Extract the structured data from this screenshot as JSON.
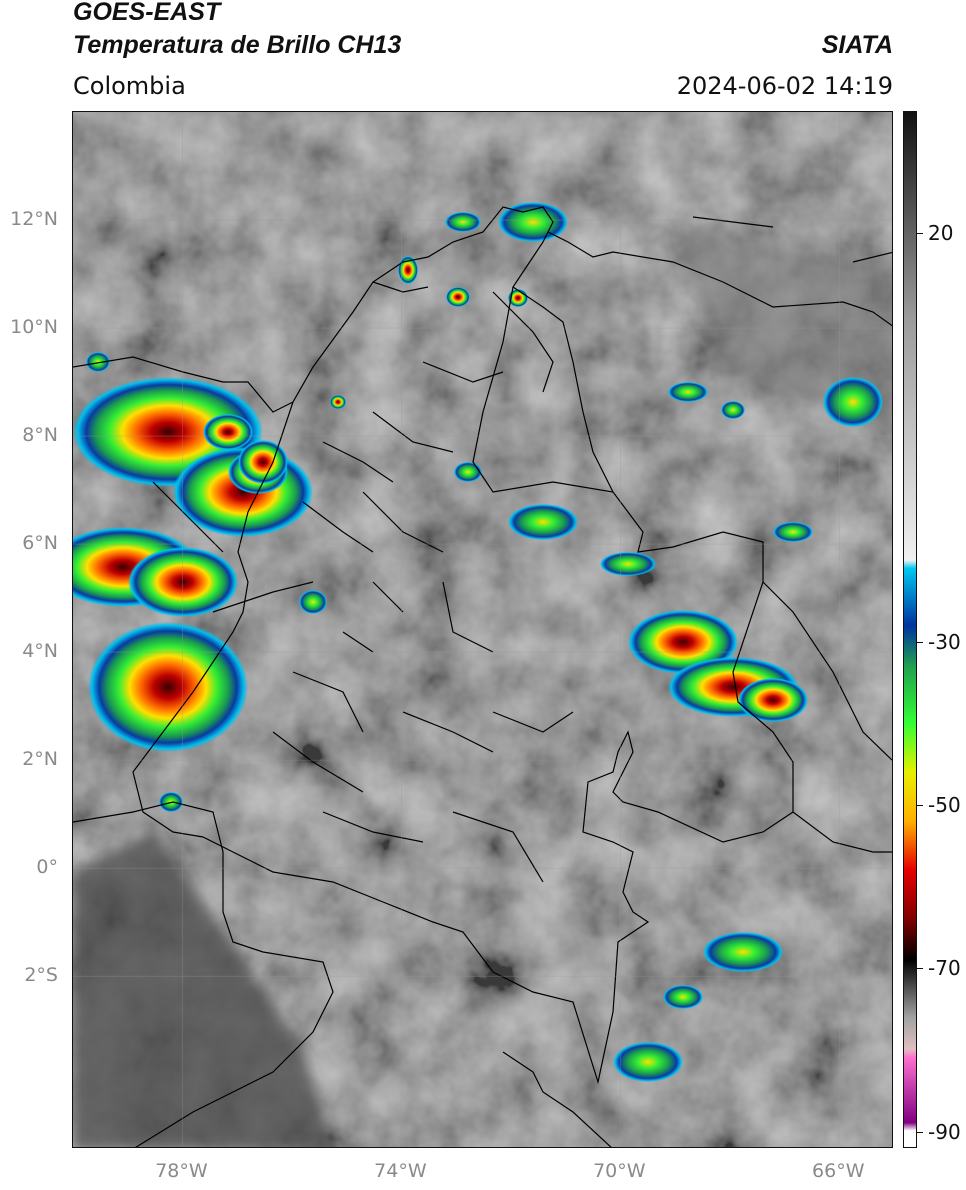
{
  "header": {
    "satellite": "GOES-EAST",
    "product": "Temperatura de Brillo CH13",
    "region": "Colombia",
    "organization": "SIATA",
    "datetime": "2024-06-02 14:19"
  },
  "map": {
    "lat_labels": [
      {
        "lat": 12,
        "text": "12°N"
      },
      {
        "lat": 10,
        "text": "10°N"
      },
      {
        "lat": 8,
        "text": "8°N"
      },
      {
        "lat": 6,
        "text": "6°N"
      },
      {
        "lat": 4,
        "text": "4°N"
      },
      {
        "lat": 2,
        "text": "2°N"
      },
      {
        "lat": 0,
        "text": "0°"
      },
      {
        "lat": -2,
        "text": "2°S"
      }
    ],
    "lon_labels": [
      {
        "lon": -78,
        "text": "78°W"
      },
      {
        "lon": -74,
        "text": "74°W"
      },
      {
        "lon": -70,
        "text": "70°W"
      },
      {
        "lon": -66,
        "text": "66°W"
      }
    ],
    "extent": {
      "lon_min": -80,
      "lon_max": -65,
      "lat_min": -5.2,
      "lat_max": 14
    }
  },
  "colorbar": {
    "range": [
      -92,
      35
    ],
    "ticks": [
      {
        "value": 20,
        "text": "20"
      },
      {
        "value": -30,
        "text": "-30"
      },
      {
        "value": -50,
        "text": "-50"
      },
      {
        "value": -70,
        "text": "-70"
      },
      {
        "value": -90,
        "text": "-90"
      }
    ],
    "stops": [
      {
        "value": 35,
        "color": "#111111"
      },
      {
        "value": 10,
        "color": "#9a9a9a"
      },
      {
        "value": -20,
        "color": "#f0f0f0"
      },
      {
        "value": -21,
        "color": "#00c8f0"
      },
      {
        "value": -28,
        "color": "#0033a0"
      },
      {
        "value": -33,
        "color": "#22a050"
      },
      {
        "value": -40,
        "color": "#33ff33"
      },
      {
        "value": -46,
        "color": "#e6f000"
      },
      {
        "value": -52,
        "color": "#ffb000"
      },
      {
        "value": -58,
        "color": "#e60000"
      },
      {
        "value": -64,
        "color": "#800000"
      },
      {
        "value": -69,
        "color": "#000000"
      },
      {
        "value": -76,
        "color": "#a0a0a0"
      },
      {
        "value": -80,
        "color": "#e0c0c0"
      },
      {
        "value": -81,
        "color": "#ff70d0"
      },
      {
        "value": -89,
        "color": "#800080"
      },
      {
        "value": -90,
        "color": "#ffffff"
      }
    ]
  }
}
